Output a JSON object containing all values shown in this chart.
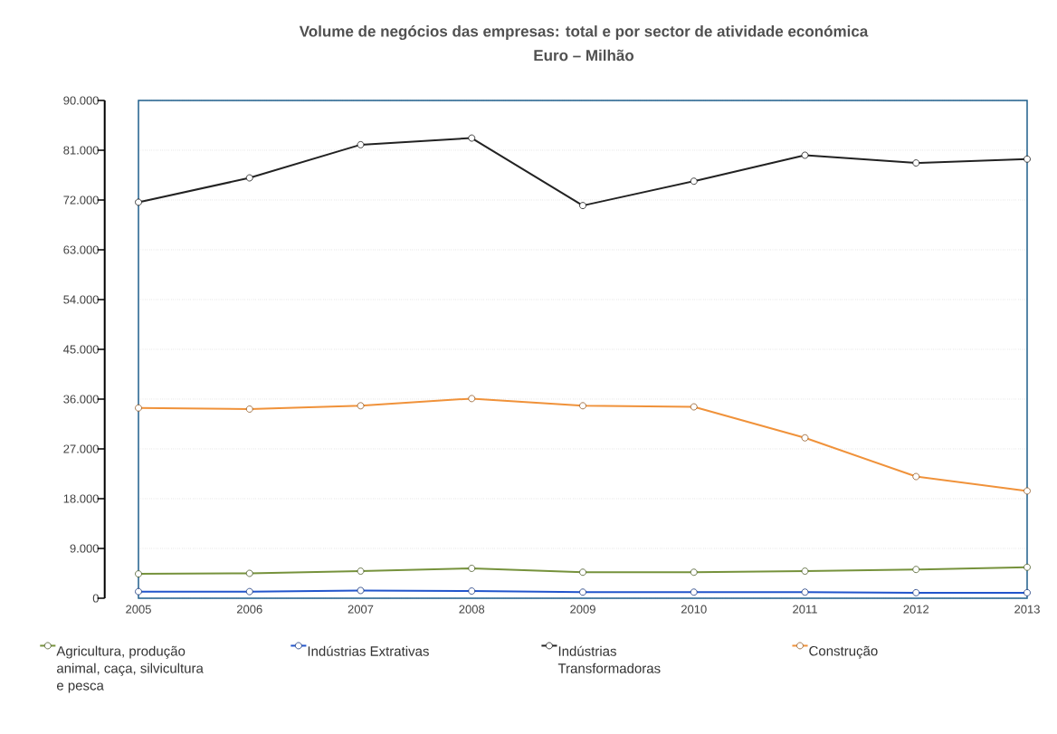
{
  "chart_data": {
    "type": "line",
    "title": "Volume de negócios das empresas: total e por sector de atividade económica",
    "subtitle": "Euro – Milhão",
    "categories": [
      "2005",
      "2006",
      "2007",
      "2008",
      "2009",
      "2010",
      "2011",
      "2012",
      "2013"
    ],
    "series": [
      {
        "name": "Agricultura, produção animal, caça, silvicultura e pesca",
        "color": "#76923c",
        "values": [
          4400,
          4500,
          4900,
          5400,
          4700,
          4700,
          4900,
          5200,
          5600
        ]
      },
      {
        "name": "Indústrias Extrativas",
        "color": "#2255cc",
        "values": [
          1200,
          1200,
          1400,
          1300,
          1100,
          1100,
          1100,
          1000,
          1000
        ]
      },
      {
        "name": "Indústrias Transformadoras",
        "color": "#222222",
        "values": [
          71600,
          76000,
          82000,
          83200,
          71000,
          75400,
          80100,
          78700,
          79400
        ]
      },
      {
        "name": "Construção",
        "color": "#f0923a",
        "values": [
          34400,
          34200,
          34800,
          36100,
          34800,
          34600,
          29000,
          22000,
          19400
        ]
      }
    ],
    "ylim": [
      0,
      90000
    ],
    "yticks": [
      {
        "value": 0,
        "label": "0"
      },
      {
        "value": 9000,
        "label": "9.000"
      },
      {
        "value": 18000,
        "label": "18.000"
      },
      {
        "value": 27000,
        "label": "27.000"
      },
      {
        "value": 36000,
        "label": "36.000"
      },
      {
        "value": 45000,
        "label": "45.000"
      },
      {
        "value": 54000,
        "label": "54.000"
      },
      {
        "value": 63000,
        "label": "63.000"
      },
      {
        "value": 72000,
        "label": "72.000"
      },
      {
        "value": 81000,
        "label": "81.000"
      },
      {
        "value": 90000,
        "label": "90.000"
      }
    ],
    "grid": "y",
    "legend": "bottom",
    "marker": "circle",
    "line_style": "solid"
  }
}
